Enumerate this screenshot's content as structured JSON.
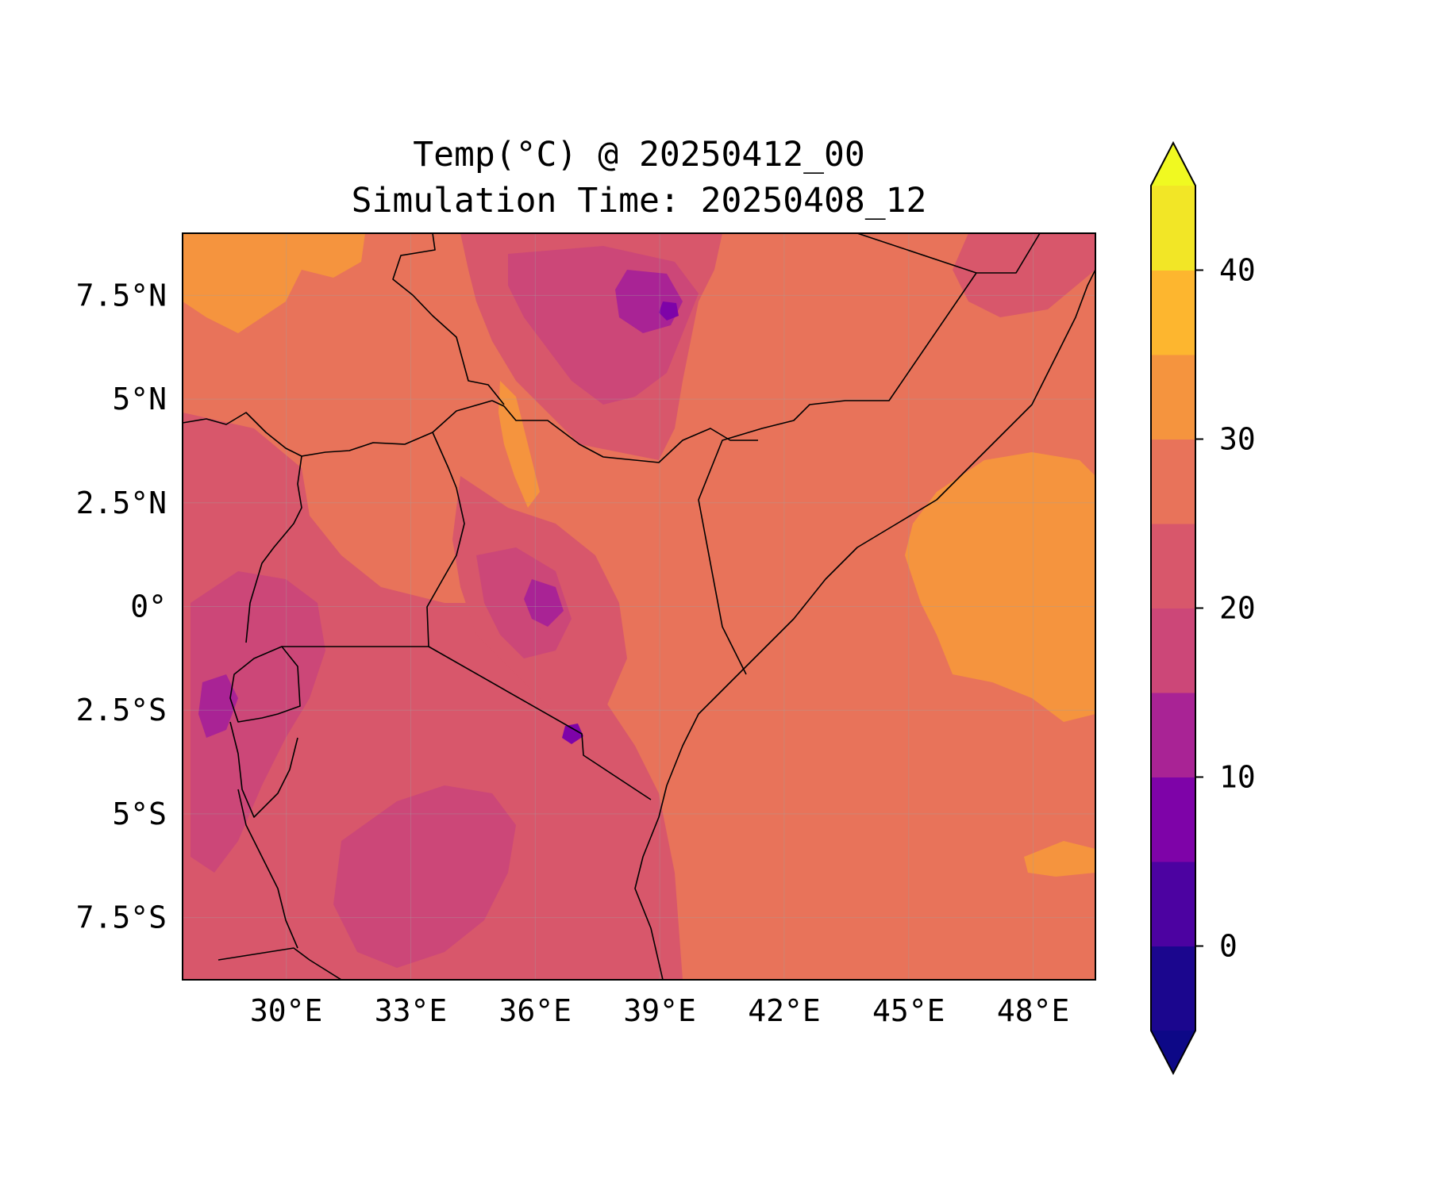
{
  "title": {
    "line1": "Temp(°C) @ 20250412_00",
    "line2": "Simulation Time: 20250408_12"
  },
  "map": {
    "lon_range": [
      27.5,
      49.5
    ],
    "lat_range": [
      -9,
      9
    ],
    "x_ticks": [
      {
        "lon": 30,
        "label": "30°E"
      },
      {
        "lon": 33,
        "label": "33°E"
      },
      {
        "lon": 36,
        "label": "36°E"
      },
      {
        "lon": 39,
        "label": "39°E"
      },
      {
        "lon": 42,
        "label": "42°E"
      },
      {
        "lon": 45,
        "label": "45°E"
      },
      {
        "lon": 48,
        "label": "48°E"
      }
    ],
    "y_ticks": [
      {
        "lat": 7.5,
        "label": "7.5°N"
      },
      {
        "lat": 5,
        "label": "5°N"
      },
      {
        "lat": 2.5,
        "label": "2.5°N"
      },
      {
        "lat": 0,
        "label": "0°"
      },
      {
        "lat": -2.5,
        "label": "2.5°S"
      },
      {
        "lat": -5,
        "label": "5°S"
      },
      {
        "lat": -7.5,
        "label": "7.5°S"
      }
    ],
    "gridlines": true,
    "background_color": "#e8735a"
  },
  "colorbar": {
    "min": -5,
    "max": 45,
    "extend": "both",
    "levels": [
      -5,
      0,
      5,
      10,
      15,
      20,
      25,
      30,
      35,
      40,
      45
    ],
    "colors": [
      "#1b068e",
      "#4c02a1",
      "#7e03a8",
      "#a92395",
      "#cc4778",
      "#d8576b",
      "#e8735a",
      "#f5943e",
      "#fdb62f",
      "#f2e626"
    ],
    "under_color": "#0d0887",
    "over_color": "#f0f921",
    "ticks": [
      {
        "value": 0,
        "label": "0"
      },
      {
        "value": 10,
        "label": "10"
      },
      {
        "value": 20,
        "label": "20"
      },
      {
        "value": 30,
        "label": "30"
      },
      {
        "value": 40,
        "label": "40"
      }
    ]
  }
}
